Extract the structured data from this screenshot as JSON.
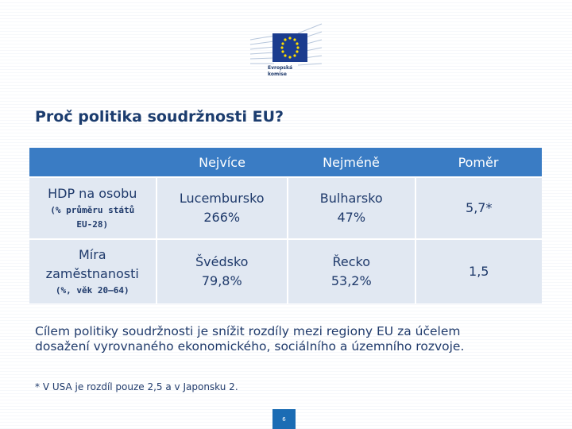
{
  "logo": {
    "text": [
      "Evropská",
      "komise"
    ]
  },
  "header": {
    "title": "Proč politika soudržnosti EU?"
  },
  "table": {
    "columns": [
      "",
      "Nejvíce",
      "Nejméně",
      "Poměr"
    ],
    "rows": [
      {
        "label": [
          "HDP na osobu"
        ],
        "note": [
          "(% průměru států",
          "EU-28)"
        ],
        "cells": [
          [
            "Lucembursko",
            "266%"
          ],
          [
            "Bulharsko",
            "47%"
          ],
          [
            "5,7*"
          ]
        ]
      },
      {
        "label": [
          "Míra",
          "zaměstnanosti"
        ],
        "note": [
          "(%, věk 20–64)"
        ],
        "cells": [
          [
            "Švédsko",
            "79,8%"
          ],
          [
            "Řecko",
            "53,2%"
          ],
          [
            "1,5"
          ]
        ]
      }
    ]
  },
  "paragraph": [
    "Cílem politiky soudržnosti je snížit rozdíly mezi regiony EU za účelem",
    "dosažení vyrovnaného ekonomického, sociálního a územního rozvoje."
  ],
  "footnote": "* V USA je rozdíl pouze 2,5 a v Japonsku 2.",
  "page_number": "6"
}
